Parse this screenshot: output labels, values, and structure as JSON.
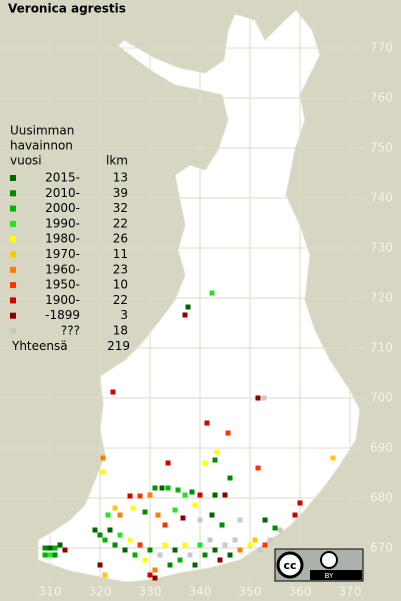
{
  "title": "Veronica agrestis",
  "legend": {
    "header": [
      "Uusimman",
      "havainnon",
      "vuosi"
    ],
    "count_header": "lkm",
    "rows": [
      {
        "label": "2015-",
        "count": 13,
        "color": "#006400"
      },
      {
        "label": "2010-",
        "count": 39,
        "color": "#008c00"
      },
      {
        "label": "2000-",
        "count": 32,
        "color": "#00b400"
      },
      {
        "label": "1990-",
        "count": 22,
        "color": "#22e622"
      },
      {
        "label": "1980-",
        "count": 26,
        "color": "#ffff00"
      },
      {
        "label": "1970-",
        "count": 11,
        "color": "#ffc800"
      },
      {
        "label": "1960-",
        "count": 23,
        "color": "#ff7d00"
      },
      {
        "label": "1950-",
        "count": 10,
        "color": "#ff3200"
      },
      {
        "label": "1900-",
        "count": 22,
        "color": "#d20000"
      },
      {
        "label": "-1899",
        "count": 3,
        "color": "#8c0000"
      },
      {
        "label": "???",
        "count": 18,
        "color": "#c8c8c8"
      }
    ],
    "total_label": "Yhteensä",
    "total": 219
  },
  "map": {
    "xlim": [
      300,
      380
    ],
    "ylim": [
      660,
      780
    ],
    "xticks": [
      310,
      320,
      330,
      340,
      350,
      360,
      370
    ],
    "yticks": [
      770,
      760,
      750,
      740,
      730,
      720,
      710,
      700,
      690,
      680,
      670
    ],
    "points": [
      [
        342.4,
        721,
        3
      ],
      [
        337.6,
        718.2,
        0
      ],
      [
        337,
        716.6,
        9
      ],
      [
        322.6,
        701.2,
        8
      ],
      [
        351.6,
        700,
        9
      ],
      [
        352.8,
        700,
        10
      ],
      [
        341.4,
        695,
        8
      ],
      [
        345.6,
        693,
        7
      ],
      [
        320.6,
        688,
        6
      ],
      [
        320.6,
        685.2,
        4
      ],
      [
        333.6,
        687,
        8
      ],
      [
        341,
        687,
        4
      ],
      [
        343,
        687.6,
        1
      ],
      [
        343.4,
        689.2,
        4
      ],
      [
        346,
        684,
        1
      ],
      [
        351.6,
        686,
        7
      ],
      [
        366.6,
        688,
        5
      ],
      [
        331,
        682,
        1
      ],
      [
        332.4,
        682,
        0
      ],
      [
        333.6,
        682,
        2
      ],
      [
        326,
        680.4,
        8
      ],
      [
        328,
        680.4,
        7
      ],
      [
        330,
        680.6,
        6
      ],
      [
        335.6,
        681.6,
        2
      ],
      [
        337,
        680.6,
        3
      ],
      [
        338.4,
        681.2,
        1
      ],
      [
        340,
        680.6,
        8
      ],
      [
        343,
        680.6,
        0
      ],
      [
        345,
        680.6,
        9
      ],
      [
        339,
        678.6,
        4
      ],
      [
        321.6,
        676.6,
        3
      ],
      [
        323,
        678,
        5
      ],
      [
        324,
        676.6,
        6
      ],
      [
        326.6,
        678,
        4
      ],
      [
        329,
        677.2,
        1
      ],
      [
        331.6,
        676.6,
        6
      ],
      [
        333,
        674.6,
        7
      ],
      [
        335,
        677.6,
        3
      ],
      [
        336.6,
        676,
        9
      ],
      [
        340,
        675.6,
        10
      ],
      [
        342.4,
        676.6,
        0
      ],
      [
        344.4,
        674.6,
        1
      ],
      [
        348,
        675.6,
        10
      ],
      [
        353,
        675.6,
        0
      ],
      [
        355,
        674,
        1
      ],
      [
        359,
        676.6,
        8
      ],
      [
        360,
        679,
        8
      ],
      [
        319,
        673.6,
        0
      ],
      [
        320,
        672.6,
        1
      ],
      [
        321,
        671.6,
        2
      ],
      [
        322,
        673.6,
        0
      ],
      [
        323,
        670.6,
        1
      ],
      [
        324,
        672.6,
        3
      ],
      [
        325,
        669.6,
        0
      ],
      [
        326,
        671.6,
        4
      ],
      [
        327,
        668.6,
        2
      ],
      [
        328,
        670.6,
        7
      ],
      [
        329,
        667.6,
        4
      ],
      [
        330,
        669.6,
        1
      ],
      [
        331,
        665.6,
        6
      ],
      [
        332,
        668.6,
        10
      ],
      [
        333,
        670.6,
        4
      ],
      [
        334,
        666.6,
        1
      ],
      [
        335,
        669.6,
        0
      ],
      [
        336,
        667.6,
        2
      ],
      [
        337,
        670.6,
        4
      ],
      [
        338,
        668.6,
        10
      ],
      [
        339,
        666.6,
        0
      ],
      [
        340,
        670.6,
        3
      ],
      [
        341,
        668.6,
        1
      ],
      [
        342,
        671.6,
        10
      ],
      [
        343,
        669.6,
        0
      ],
      [
        344,
        667.6,
        9
      ],
      [
        345,
        670.6,
        10
      ],
      [
        346,
        668.6,
        0
      ],
      [
        347,
        671.6,
        10
      ],
      [
        348,
        669.6,
        6
      ],
      [
        350,
        670.6,
        4
      ],
      [
        351,
        671.6,
        5
      ],
      [
        352,
        669.6,
        10
      ],
      [
        353,
        670.6,
        7
      ],
      [
        354,
        671.6,
        10
      ],
      [
        356,
        673.6,
        10
      ],
      [
        309,
        670,
        1
      ],
      [
        310,
        670,
        0
      ],
      [
        311,
        670,
        2
      ],
      [
        309,
        668.6,
        2
      ],
      [
        310,
        668.6,
        3
      ],
      [
        311,
        668.6,
        1
      ],
      [
        312,
        670.6,
        0
      ],
      [
        313,
        669.6,
        9
      ],
      [
        321,
        664.6,
        5
      ],
      [
        320,
        666.6,
        9
      ],
      [
        330,
        664.6,
        8
      ],
      [
        331,
        664,
        9
      ]
    ]
  },
  "license": {
    "cc": "cc",
    "by": "BY"
  }
}
